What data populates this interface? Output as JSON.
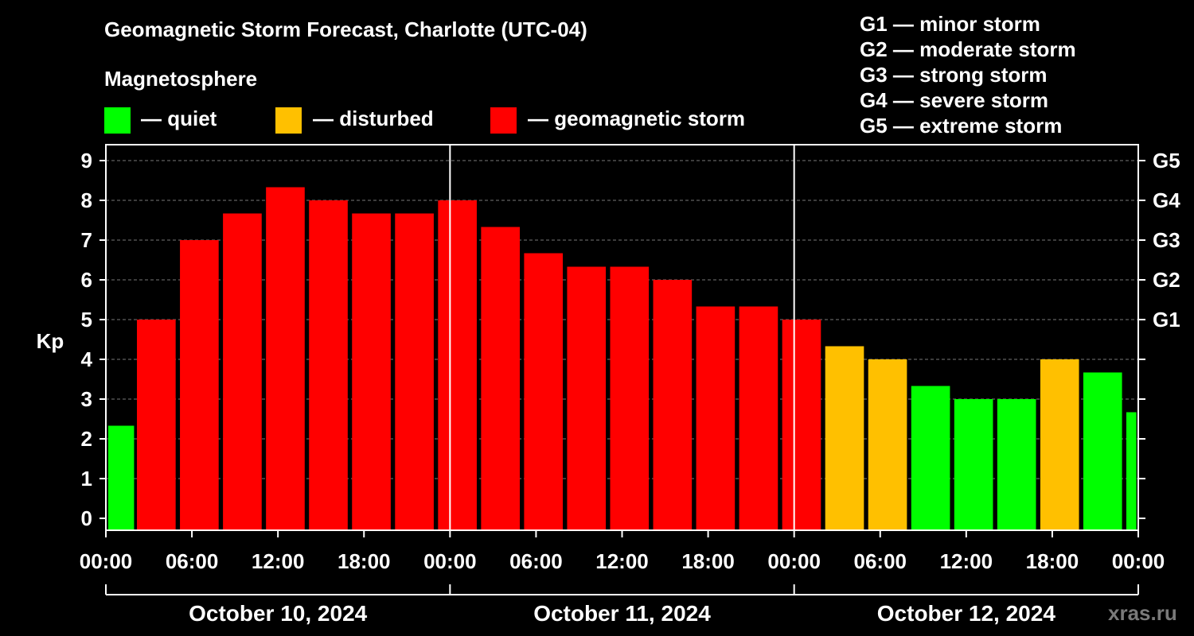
{
  "chart_data": {
    "type": "bar",
    "title": "Geomagnetic Storm Forecast, Charlotte (UTC-04)",
    "legend_heading": "Magnetosphere",
    "legend": [
      {
        "label": "— quiet",
        "color": "#00ff00"
      },
      {
        "label": "— disturbed",
        "color": "#ffc000"
      },
      {
        "label": "— geomagnetic storm",
        "color": "#ff0000"
      }
    ],
    "g_scale": [
      "G1 — minor storm",
      "G2 — moderate storm",
      "G3 — strong storm",
      "G4 — severe storm",
      "G5 — extreme storm"
    ],
    "ylabel": "Kp",
    "ylim": [
      0,
      9
    ],
    "y_ticks": [
      "0",
      "1",
      "2",
      "3",
      "4",
      "5",
      "6",
      "7",
      "8",
      "9"
    ],
    "right_axis_labels": [
      {
        "kp": 5,
        "label": "G1"
      },
      {
        "kp": 6,
        "label": "G2"
      },
      {
        "kp": 7,
        "label": "G3"
      },
      {
        "kp": 8,
        "label": "G4"
      },
      {
        "kp": 9,
        "label": "G5"
      }
    ],
    "x_tick_labels": [
      "00:00",
      "06:00",
      "12:00",
      "18:00",
      "00:00",
      "06:00",
      "12:00",
      "18:00",
      "00:00",
      "06:00",
      "12:00",
      "18:00",
      "00:00"
    ],
    "dates": [
      "October 10, 2024",
      "October 11, 2024",
      "October 12, 2024"
    ],
    "xlim_hours": [
      0,
      72
    ],
    "bars": [
      {
        "start_hour": 0,
        "end_hour": 1.8,
        "kp": 2.33,
        "level": "quiet"
      },
      {
        "start_hour": 2,
        "end_hour": 4.7,
        "kp": 5.0,
        "level": "storm"
      },
      {
        "start_hour": 5,
        "end_hour": 7.7,
        "kp": 7.0,
        "level": "storm"
      },
      {
        "start_hour": 8,
        "end_hour": 10.7,
        "kp": 7.67,
        "level": "storm"
      },
      {
        "start_hour": 11,
        "end_hour": 13.7,
        "kp": 8.33,
        "level": "storm"
      },
      {
        "start_hour": 14,
        "end_hour": 16.7,
        "kp": 8.0,
        "level": "storm"
      },
      {
        "start_hour": 17,
        "end_hour": 19.7,
        "kp": 7.67,
        "level": "storm"
      },
      {
        "start_hour": 20,
        "end_hour": 22.7,
        "kp": 7.67,
        "level": "storm"
      },
      {
        "start_hour": 23,
        "end_hour": 25.7,
        "kp": 8.0,
        "level": "storm"
      },
      {
        "start_hour": 26,
        "end_hour": 28.7,
        "kp": 7.33,
        "level": "storm"
      },
      {
        "start_hour": 29,
        "end_hour": 31.7,
        "kp": 6.67,
        "level": "storm"
      },
      {
        "start_hour": 32,
        "end_hour": 34.7,
        "kp": 6.33,
        "level": "storm"
      },
      {
        "start_hour": 35,
        "end_hour": 37.7,
        "kp": 6.33,
        "level": "storm"
      },
      {
        "start_hour": 38,
        "end_hour": 40.7,
        "kp": 6.0,
        "level": "storm"
      },
      {
        "start_hour": 41,
        "end_hour": 43.7,
        "kp": 5.33,
        "level": "storm"
      },
      {
        "start_hour": 44,
        "end_hour": 46.7,
        "kp": 5.33,
        "level": "storm"
      },
      {
        "start_hour": 47,
        "end_hour": 49.7,
        "kp": 5.0,
        "level": "storm"
      },
      {
        "start_hour": 50,
        "end_hour": 52.7,
        "kp": 4.33,
        "level": "disturbed"
      },
      {
        "start_hour": 53,
        "end_hour": 55.7,
        "kp": 4.0,
        "level": "disturbed"
      },
      {
        "start_hour": 56,
        "end_hour": 58.7,
        "kp": 3.33,
        "level": "quiet"
      },
      {
        "start_hour": 59,
        "end_hour": 61.7,
        "kp": 3.0,
        "level": "quiet"
      },
      {
        "start_hour": 62,
        "end_hour": 64.7,
        "kp": 3.0,
        "level": "quiet"
      },
      {
        "start_hour": 65,
        "end_hour": 67.7,
        "kp": 4.0,
        "level": "disturbed"
      },
      {
        "start_hour": 68,
        "end_hour": 70.7,
        "kp": 3.67,
        "level": "quiet"
      },
      {
        "start_hour": 71,
        "end_hour": 71.7,
        "kp": 2.67,
        "level": "quiet"
      }
    ],
    "colors": {
      "quiet": "#00ff00",
      "disturbed": "#ffc000",
      "storm": "#ff0000"
    },
    "grid": "dashed horizontal",
    "legend_placement": "top"
  },
  "watermark": "xras.ru"
}
